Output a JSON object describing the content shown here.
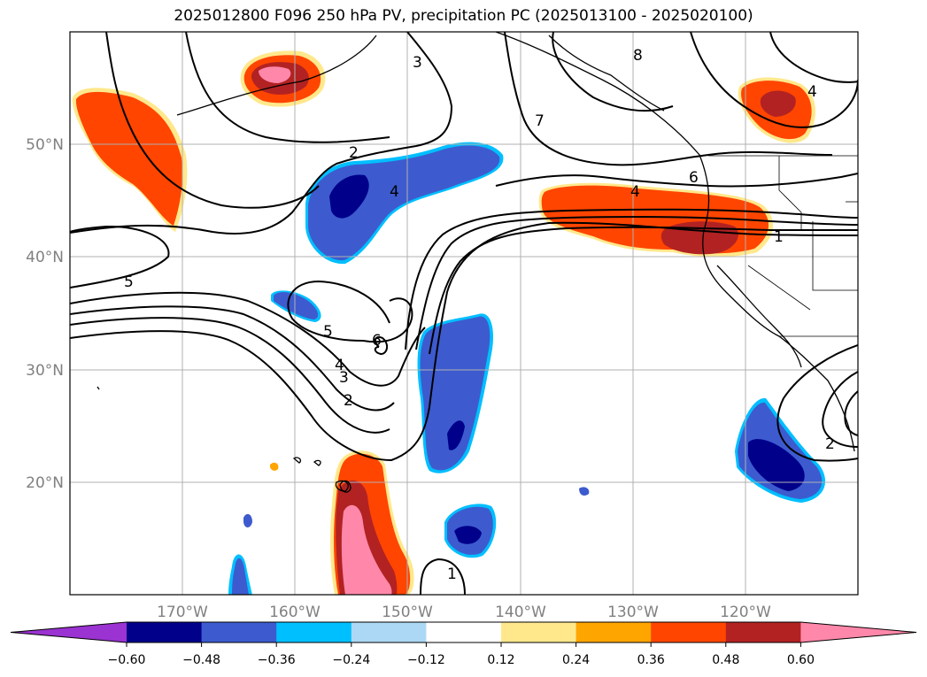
{
  "title": "2025012800 F096 250 hPa PV, precipitation PC (2025013100 - 2025020100)",
  "map": {
    "lat_labels": [
      "50°N",
      "40°N",
      "30°N",
      "20°N"
    ],
    "lat_values": [
      50,
      40,
      30,
      20
    ],
    "lon_labels": [
      "170°W",
      "160°W",
      "150°W",
      "140°W",
      "130°W",
      "120°W"
    ],
    "lon_values": [
      -170,
      -160,
      -150,
      -140,
      -130,
      -120
    ],
    "extent": {
      "lon_min": -180,
      "lon_max": -110,
      "lat_min": 10,
      "lat_max": 60
    },
    "grid": true,
    "pv_contour_labels": [
      "2",
      "3",
      "4",
      "5",
      "6",
      "7",
      "8",
      "2",
      "4",
      "4",
      "5",
      "6",
      "1",
      "2",
      "3",
      "4",
      "5",
      "6",
      "2",
      "1",
      "4",
      "5"
    ]
  },
  "colorbar": {
    "ticks": [
      "−0.60",
      "−0.48",
      "−0.36",
      "−0.24",
      "−0.12",
      "0.12",
      "0.24",
      "0.36",
      "0.48",
      "0.60"
    ],
    "colors": [
      "#9a33d1",
      "#00008b",
      "#3d5bce",
      "#00bfff",
      "#add8f5",
      "#ffffff",
      "#ffe88c",
      "#ffa500",
      "#ff4500",
      "#b22222",
      "#ff88aa"
    ]
  }
}
